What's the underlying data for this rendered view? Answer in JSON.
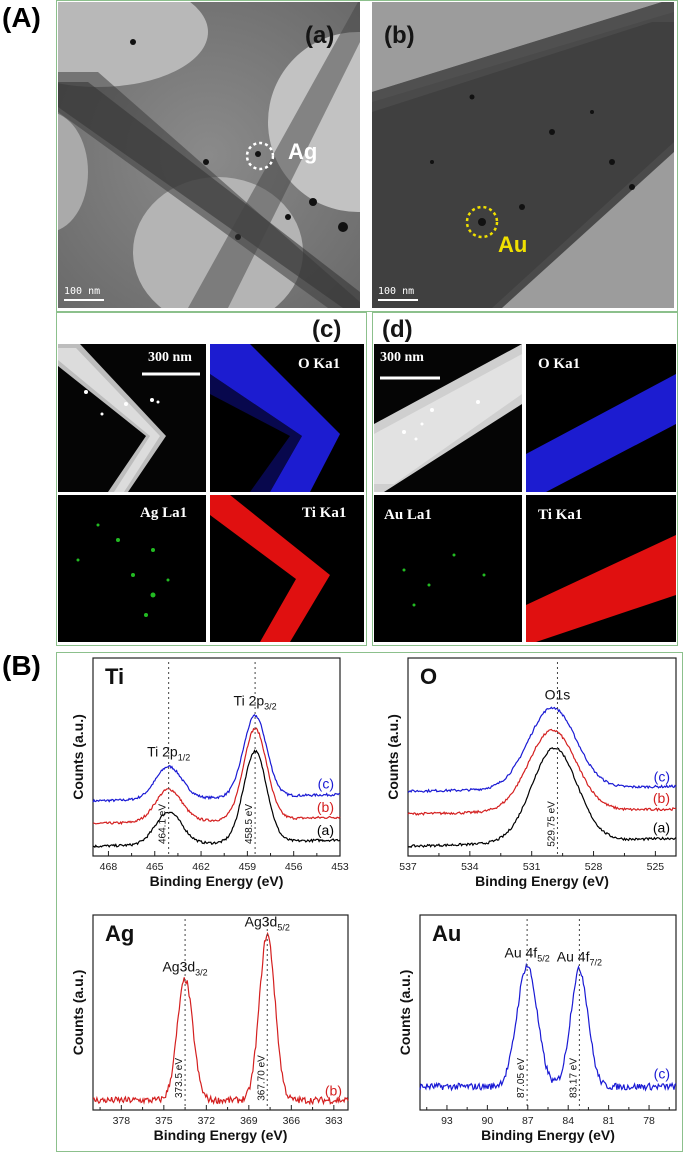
{
  "figure": {
    "label_A": "(A)",
    "label_B": "(B)",
    "tem": {
      "panel_a": {
        "letter": "(a)",
        "element": "Ag",
        "scale": "100 nm"
      },
      "panel_b": {
        "letter": "(b)",
        "element": "Au",
        "scale": "100 nm"
      }
    },
    "eds": {
      "panel_c": {
        "letter": "(c)",
        "scale": "300 nm",
        "maps": [
          "O Ka1",
          "Ag La1",
          "Ti Ka1"
        ]
      },
      "panel_d": {
        "letter": "(d)",
        "scale": "300 nm",
        "maps": [
          "O Ka1",
          "Au La1",
          "Ti Ka1"
        ]
      }
    },
    "colors": {
      "a": "#000000",
      "b": "#d42020",
      "c": "#1a1ad4",
      "frame": "#8cc08c",
      "o_map": "#1c1cd0",
      "ti_map": "#e01010",
      "ag_map": "#22bb22",
      "au_label": "#f0e000"
    }
  },
  "chart_data": [
    {
      "type": "line",
      "element": "Ti",
      "xlabel": "Binding Energy (eV)",
      "ylabel": "Counts (a.u.)",
      "xlim": [
        469,
        453
      ],
      "xticks": [
        "468",
        "465",
        "462",
        "459",
        "456",
        "453"
      ],
      "peak_labels": [
        {
          "name": "Ti 2p",
          "sub": "1/2",
          "x": 464.1
        },
        {
          "name": "Ti 2p",
          "sub": "3/2",
          "x": 458.5
        }
      ],
      "energy_labels": [
        "464.1 eV",
        "458.5 eV"
      ],
      "series": [
        {
          "name": "(c)",
          "color": "#1a1ad4"
        },
        {
          "name": "(b)",
          "color": "#d42020"
        },
        {
          "name": "(a)",
          "color": "#000000"
        }
      ]
    },
    {
      "type": "line",
      "element": "O",
      "xlabel": "Binding Energy (eV)",
      "ylabel": "Counts (a.u.)",
      "xlim": [
        537,
        524
      ],
      "xticks": [
        "537",
        "534",
        "531",
        "528",
        "525"
      ],
      "peak_labels": [
        {
          "name": "O1s",
          "sub": "",
          "x": 529.75
        }
      ],
      "energy_labels": [
        "529.75 eV"
      ],
      "series": [
        {
          "name": "(c)",
          "color": "#1a1ad4"
        },
        {
          "name": "(b)",
          "color": "#d42020"
        },
        {
          "name": "(a)",
          "color": "#000000"
        }
      ]
    },
    {
      "type": "line",
      "element": "Ag",
      "xlabel": "Binding Energy (eV)",
      "ylabel": "Counts (a.u.)",
      "xlim": [
        380,
        362
      ],
      "xticks": [
        "378",
        "375",
        "372",
        "369",
        "366",
        "363"
      ],
      "peak_labels": [
        {
          "name": "Ag3d",
          "sub": "3/2",
          "x": 373.5
        },
        {
          "name": "Ag3d",
          "sub": "5/2",
          "x": 367.7
        }
      ],
      "energy_labels": [
        "373.5 eV",
        "367.70 eV"
      ],
      "series": [
        {
          "name": "(b)",
          "color": "#d42020"
        }
      ]
    },
    {
      "type": "line",
      "element": "Au",
      "xlabel": "Binding Energy (eV)",
      "ylabel": "Counts (a.u.)",
      "xlim": [
        95,
        76
      ],
      "xticks": [
        "93",
        "90",
        "87",
        "84",
        "81",
        "78"
      ],
      "peak_labels": [
        {
          "name": "Au 4f",
          "sub": "5/2",
          "x": 87.05
        },
        {
          "name": "Au 4f",
          "sub": "7/2",
          "x": 83.17
        }
      ],
      "energy_labels": [
        "87.05 eV",
        "83.17 eV"
      ],
      "series": [
        {
          "name": "(c)",
          "color": "#1a1ad4"
        }
      ]
    }
  ]
}
